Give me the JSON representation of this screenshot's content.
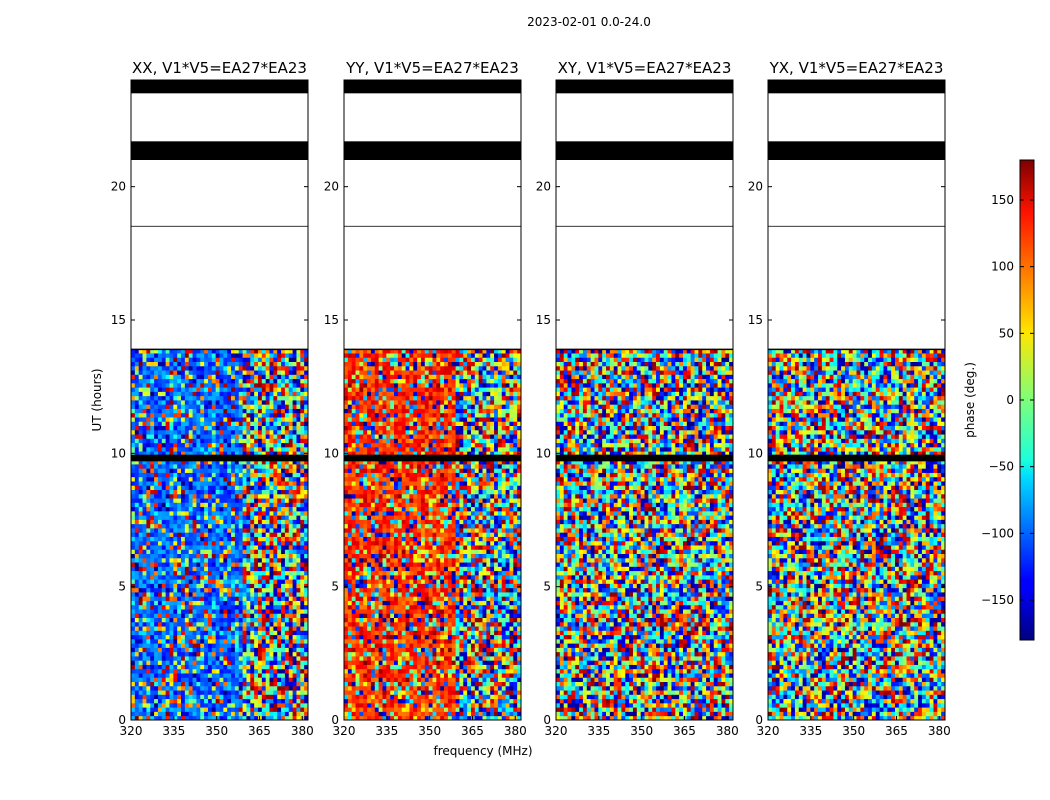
{
  "suptitle": "2023-02-01 0.0-24.0",
  "ylabel": "UT (hours)",
  "xlabel": "frequency (MHz)",
  "colorbar": {
    "label": "phase (deg.)",
    "ticks": [
      "150",
      "100",
      "50",
      "0",
      "−50",
      "−100",
      "−150"
    ],
    "ticks_values": [
      150,
      100,
      50,
      0,
      -50,
      -100,
      -150
    ],
    "range": [
      -180,
      180
    ],
    "colormap": "jet"
  },
  "chart_data": {
    "type": "heatmap",
    "x_range": [
      320,
      382
    ],
    "y_range": [
      0,
      24
    ],
    "x_ticks": [
      320,
      335,
      350,
      365,
      380
    ],
    "y_ticks": [
      0,
      5,
      10,
      15,
      20
    ],
    "flagged_ut_hours": [
      [
        18.5,
        24.0
      ],
      [
        13.9,
        18.5
      ],
      [
        9.7,
        9.95
      ],
      [
        21.0,
        21.7
      ],
      [
        23.5,
        24.0
      ]
    ],
    "panels": [
      {
        "title": "XX, V1*V5=EA27*EA23",
        "pol": "XX",
        "coherent_phase_deg": -100
      },
      {
        "title": "YY, V1*V5=EA27*EA23",
        "pol": "YY",
        "coherent_phase_deg": 120
      },
      {
        "title": "XY, V1*V5=EA27*EA23",
        "pol": "XY",
        "coherent_phase_deg": null
      },
      {
        "title": "YX, V1*V5=EA27*EA23",
        "pol": "YX",
        "coherent_phase_deg": null
      }
    ]
  }
}
